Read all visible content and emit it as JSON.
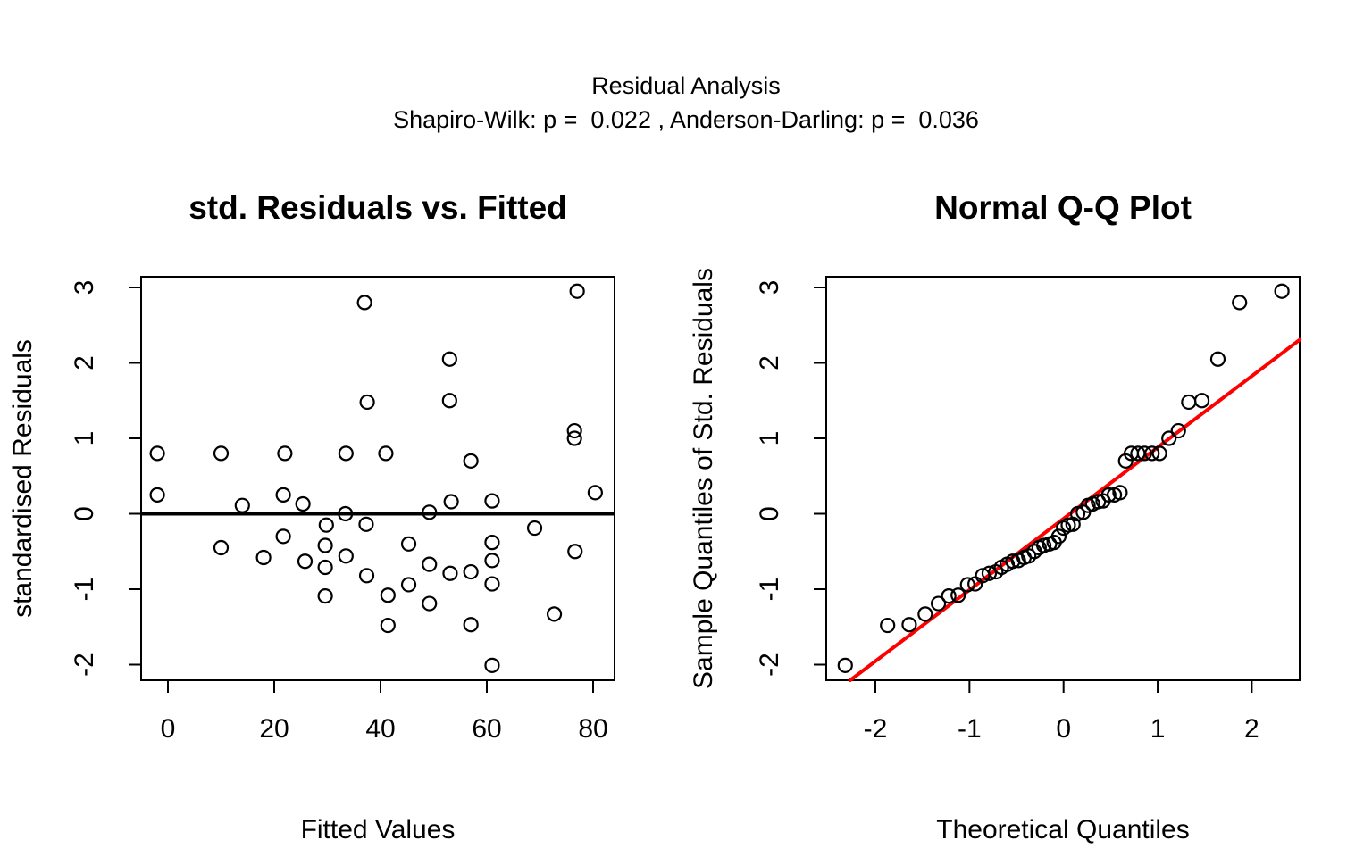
{
  "header": {
    "title": "Residual Analysis",
    "subtitle": "Shapiro-Wilk: p =  0.022 , Anderson-Darling: p =  0.036"
  },
  "colors": {
    "foreground": "#000000",
    "background": "#ffffff",
    "qq_line": "#ff0000"
  },
  "chart_data": [
    {
      "type": "scatter",
      "title": "std. Residuals vs. Fitted",
      "xlabel": "Fitted Values",
      "ylabel": "standardised Residuals",
      "x_ticks": [
        0,
        20,
        40,
        60,
        80
      ],
      "y_ticks": [
        -2,
        -1,
        0,
        1,
        2,
        3
      ],
      "xlim": [
        -5.0,
        84.0
      ],
      "ylim": [
        -2.21,
        3.14
      ],
      "grid": false,
      "hline_y": 0,
      "points": [
        [
          37,
          2.8
        ],
        [
          77,
          2.95
        ],
        [
          53,
          2.05
        ],
        [
          37.5,
          1.48
        ],
        [
          53,
          1.5
        ],
        [
          76.5,
          1.1
        ],
        [
          76.5,
          1.0
        ],
        [
          -2,
          0.8
        ],
        [
          10,
          0.8
        ],
        [
          22,
          0.8
        ],
        [
          33.5,
          0.8
        ],
        [
          41,
          0.8
        ],
        [
          57,
          0.7
        ],
        [
          -2,
          0.25
        ],
        [
          14,
          0.11
        ],
        [
          21.7,
          0.25
        ],
        [
          25.4,
          0.13
        ],
        [
          33.4,
          0.0
        ],
        [
          29.8,
          -0.15
        ],
        [
          37.3,
          -0.14
        ],
        [
          49.2,
          0.02
        ],
        [
          53.3,
          0.16
        ],
        [
          61,
          0.17
        ],
        [
          80.4,
          0.28
        ],
        [
          69,
          -0.19
        ],
        [
          10,
          -0.45
        ],
        [
          18,
          -0.58
        ],
        [
          21.7,
          -0.3
        ],
        [
          25.8,
          -0.63
        ],
        [
          29.6,
          -0.42
        ],
        [
          29.6,
          -0.71
        ],
        [
          33.5,
          -0.56
        ],
        [
          37.4,
          -0.82
        ],
        [
          29.6,
          -1.09
        ],
        [
          41.4,
          -1.08
        ],
        [
          41.4,
          -1.48
        ],
        [
          45.3,
          -0.4
        ],
        [
          45.3,
          -0.94
        ],
        [
          49.2,
          -0.67
        ],
        [
          49.2,
          -1.19
        ],
        [
          53.1,
          -0.79
        ],
        [
          57,
          -0.77
        ],
        [
          57,
          -1.47
        ],
        [
          61,
          -0.38
        ],
        [
          61,
          -0.62
        ],
        [
          61,
          -0.93
        ],
        [
          61,
          -2.01
        ],
        [
          72.7,
          -1.33
        ],
        [
          76.6,
          -0.5
        ]
      ]
    },
    {
      "type": "scatter",
      "title": "Normal Q-Q Plot",
      "xlabel": "Theoretical Quantiles",
      "ylabel": "Sample Quantiles of Std. Residuals",
      "x_ticks": [
        -2,
        -1,
        0,
        1,
        2
      ],
      "y_ticks": [
        -2,
        -1,
        0,
        1,
        2,
        3
      ],
      "xlim": [
        -2.52,
        2.51
      ],
      "ylim": [
        -2.21,
        3.14
      ],
      "grid": false,
      "ref_line": {
        "slope": 0.945,
        "intercept": -0.065,
        "color": "#ff0000"
      },
      "points": [
        [
          -2.32,
          -2.01
        ],
        [
          -1.87,
          -1.48
        ],
        [
          -1.64,
          -1.47
        ],
        [
          -1.47,
          -1.33
        ],
        [
          -1.33,
          -1.19
        ],
        [
          -1.22,
          -1.09
        ],
        [
          -1.12,
          -1.08
        ],
        [
          -1.02,
          -0.94
        ],
        [
          -0.94,
          -0.93
        ],
        [
          -0.86,
          -0.82
        ],
        [
          -0.79,
          -0.79
        ],
        [
          -0.72,
          -0.77
        ],
        [
          -0.66,
          -0.71
        ],
        [
          -0.6,
          -0.67
        ],
        [
          -0.54,
          -0.63
        ],
        [
          -0.48,
          -0.62
        ],
        [
          -0.42,
          -0.58
        ],
        [
          -0.37,
          -0.56
        ],
        [
          -0.31,
          -0.5
        ],
        [
          -0.26,
          -0.45
        ],
        [
          -0.21,
          -0.42
        ],
        [
          -0.15,
          -0.4
        ],
        [
          -0.1,
          -0.38
        ],
        [
          -0.05,
          -0.3
        ],
        [
          0.0,
          -0.19
        ],
        [
          0.05,
          -0.15
        ],
        [
          0.1,
          -0.14
        ],
        [
          0.15,
          0.0
        ],
        [
          0.21,
          0.02
        ],
        [
          0.26,
          0.11
        ],
        [
          0.31,
          0.13
        ],
        [
          0.37,
          0.16
        ],
        [
          0.42,
          0.17
        ],
        [
          0.48,
          0.25
        ],
        [
          0.54,
          0.25
        ],
        [
          0.6,
          0.28
        ],
        [
          0.66,
          0.7
        ],
        [
          0.72,
          0.8
        ],
        [
          0.79,
          0.8
        ],
        [
          0.86,
          0.8
        ],
        [
          0.94,
          0.8
        ],
        [
          1.02,
          0.8
        ],
        [
          1.12,
          1.0
        ],
        [
          1.22,
          1.1
        ],
        [
          1.33,
          1.48
        ],
        [
          1.47,
          1.5
        ],
        [
          1.64,
          2.05
        ],
        [
          1.87,
          2.8
        ],
        [
          2.32,
          2.95
        ]
      ]
    }
  ]
}
